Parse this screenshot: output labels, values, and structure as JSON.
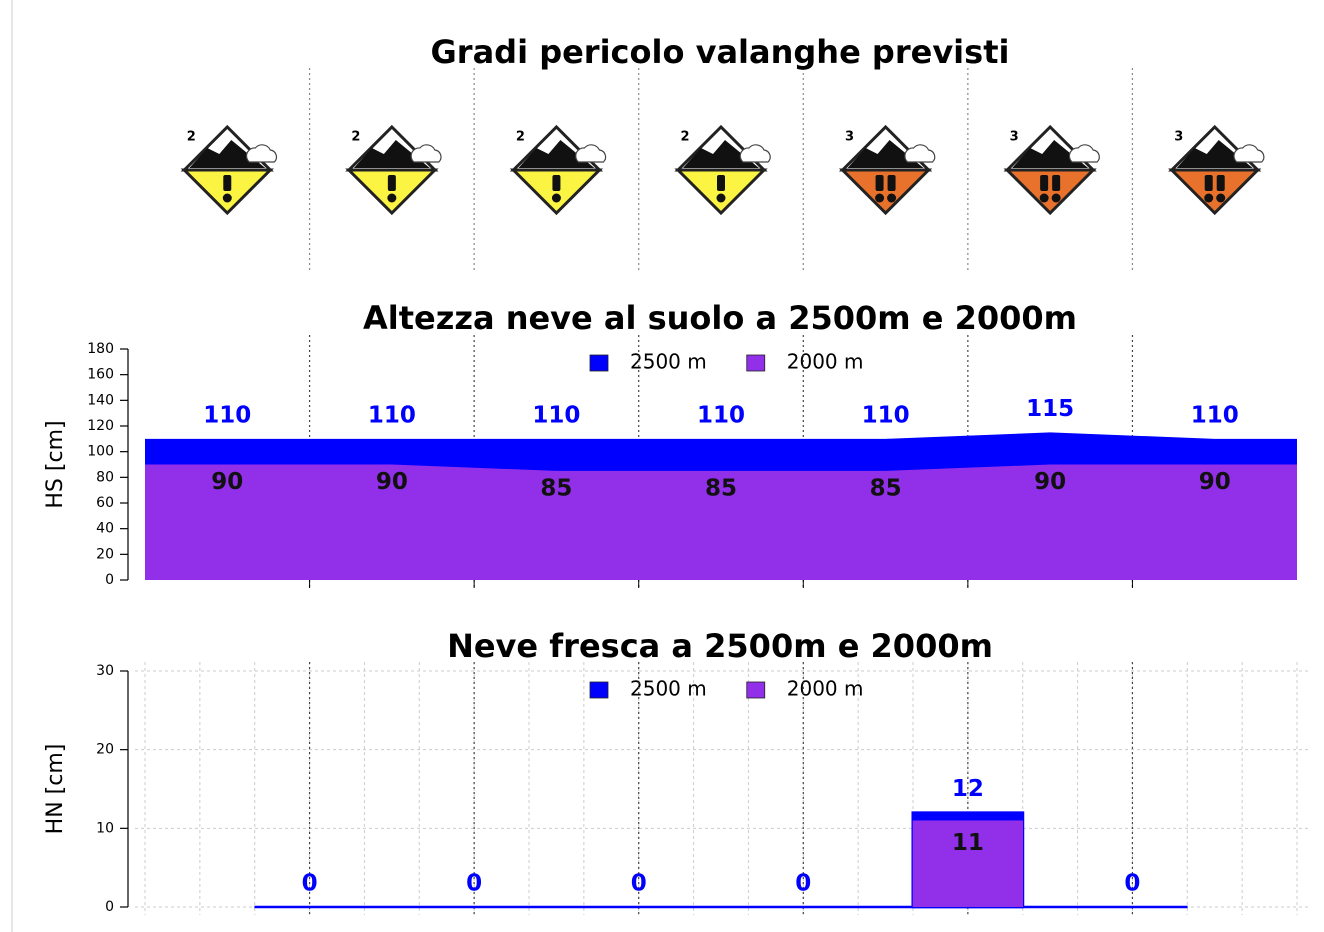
{
  "chart_data": [
    {
      "type": "icons",
      "title": "Gradi pericolo valanghe previsti",
      "values": [
        2,
        2,
        2,
        2,
        3,
        3,
        3
      ],
      "level_colors": {
        "2": "#fbf442",
        "3": "#e8722c"
      }
    },
    {
      "type": "area",
      "title": "Altezza neve al suolo a 2500m e 2000m",
      "ylabel": "HS [cm]",
      "series": [
        {
          "name": "2500 m",
          "color": "#0000ff",
          "values": [
            110,
            110,
            110,
            110,
            110,
            115,
            110
          ]
        },
        {
          "name": "2000 m",
          "color": "#922fe9",
          "values": [
            90,
            90,
            85,
            85,
            85,
            90,
            90
          ]
        }
      ],
      "ylim": [
        0,
        180
      ],
      "yticks": [
        0,
        20,
        40,
        60,
        80,
        100,
        120,
        140,
        160,
        180
      ],
      "grid": false
    },
    {
      "type": "bar",
      "title": "Neve fresca a 2500m e 2000m",
      "ylabel": "HN [cm]",
      "series": [
        {
          "name": "2500 m",
          "color": "#0000ff",
          "values": [
            0,
            0,
            0,
            0,
            12,
            0
          ]
        },
        {
          "name": "2000 m",
          "color": "#922fe9",
          "values": [
            0,
            0,
            0,
            0,
            11,
            0
          ],
          "value_labels": [
            null,
            null,
            null,
            null,
            "11",
            null
          ]
        }
      ],
      "ylim": [
        0,
        30
      ],
      "yticks": [
        0,
        10,
        20,
        30
      ],
      "grid": true
    }
  ]
}
